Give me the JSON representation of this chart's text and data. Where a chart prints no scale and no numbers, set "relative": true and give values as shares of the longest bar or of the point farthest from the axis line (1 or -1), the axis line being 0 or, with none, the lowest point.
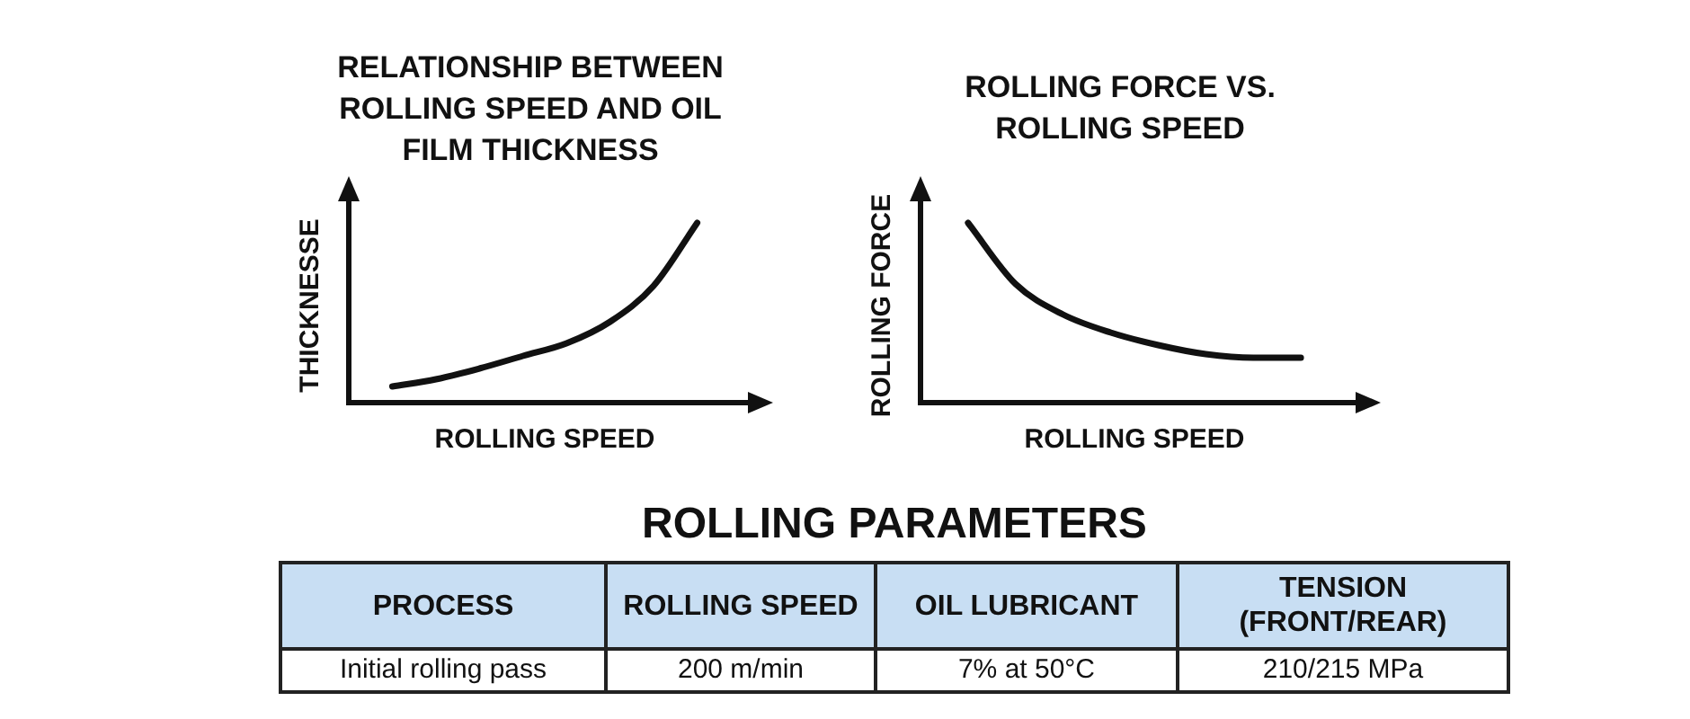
{
  "chart_data": [
    {
      "type": "line",
      "title": "RELATIONSHIP BETWEEN ROLLING SPEED AND OIL FILM THICKNESS",
      "xlabel": "ROLLING SPEED",
      "ylabel": "THICKNESSE",
      "relative": true,
      "marker": "none",
      "categories": [
        null,
        null,
        null,
        null,
        null,
        null,
        null,
        null,
        null,
        null
      ],
      "series": [
        {
          "color": "#111111",
          "values": [
            null,
            0.09,
            0.13,
            0.19,
            0.26,
            0.33,
            0.45,
            0.65,
            1,
            null
          ]
        }
      ]
    },
    {
      "type": "line",
      "title": "ROLLING FORCE VS. ROLLING SPEED",
      "xlabel": "ROLLING SPEED",
      "ylabel": "ROLLING FORCE",
      "relative": true,
      "marker": "none",
      "categories": [
        null,
        null,
        null,
        null,
        null,
        null,
        null,
        null,
        null,
        null
      ],
      "series": [
        {
          "color": "#111111",
          "values": [
            null,
            1,
            0.66,
            0.49,
            0.39,
            0.32,
            0.27,
            0.25,
            0.25,
            null
          ]
        }
      ]
    },
    {
      "type": "other",
      "title": "ROLLING PARAMETERS",
      "annotations": [
        "PROCESS",
        "ROLLING SPEED",
        "OIL LUBRICANT",
        "TENSION (FRONT/REAR)",
        "Initial rolling pass",
        "200 m/min",
        "7% at 50°C",
        "210/215 MPa"
      ]
    }
  ]
}
